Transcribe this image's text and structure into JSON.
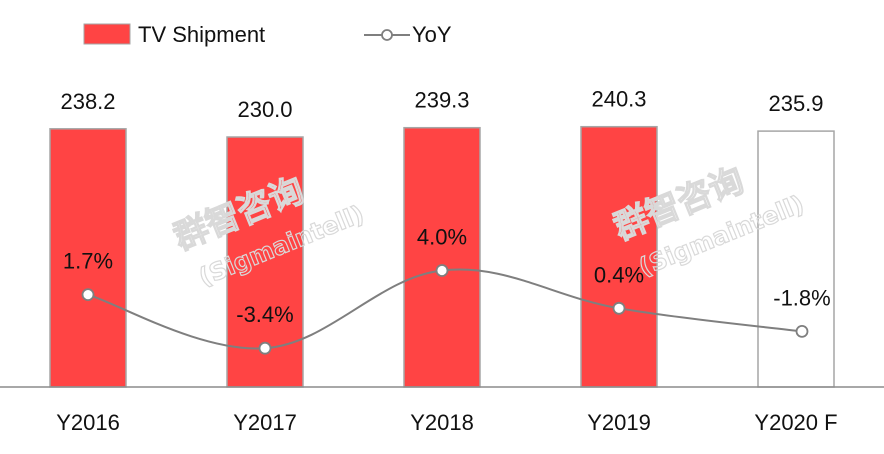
{
  "chart_data": {
    "type": "bar",
    "categories": [
      "Y2016",
      "Y2017",
      "Y2018",
      "Y2019",
      "Y2020 F"
    ],
    "series": [
      {
        "name": "TV Shipment",
        "type": "bar",
        "values": [
          238.2,
          230.0,
          239.3,
          240.3,
          235.9
        ],
        "labels": [
          "238.2",
          "230.0",
          "239.3",
          "240.3",
          "235.9"
        ],
        "color": "#ff4444",
        "forecast_index": 4
      },
      {
        "name": "YoY",
        "type": "line",
        "values": [
          1.7,
          -3.4,
          4.0,
          0.4,
          -1.8
        ],
        "labels": [
          "1.7%",
          "-3.4%",
          "4.0%",
          "0.4%",
          "-1.8%"
        ],
        "color": "#7f7f7f"
      }
    ],
    "legend": "top-left",
    "grid": false
  },
  "watermark": {
    "cn": "群智咨询",
    "en": "(Sigmaintell)"
  }
}
